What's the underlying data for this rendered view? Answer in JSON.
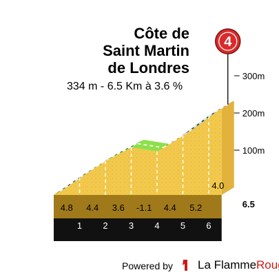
{
  "title_lines": [
    "Côte de",
    "Saint Martin",
    "de Londres"
  ],
  "subtitle": "334 m - 6.5 Km à 3.6 %",
  "climb_number": "4",
  "footer": {
    "powered_by": "Powered by",
    "brand_a": "La Flamme",
    "brand_b": "Rouge"
  },
  "colors": {
    "fill": "#f2c94c",
    "steep": "#1e5b7a",
    "moderate": "#29a02f",
    "gentle": "#8ee04a",
    "marker": "#d92b2b",
    "base": "#111111"
  },
  "chart_data": {
    "type": "area",
    "title": "Côte de Saint Martin de Londres",
    "xlabel": "",
    "ylabel": "",
    "xlim": [
      0,
      6.5
    ],
    "ylim": [
      0,
      334
    ],
    "x_ticks": [
      "1",
      "2",
      "3",
      "4",
      "5",
      "6"
    ],
    "end_label": "6.5",
    "y_ticks": [
      {
        "value": 100,
        "label": "100m"
      },
      {
        "value": 200,
        "label": "200m"
      },
      {
        "value": 300,
        "label": "300m"
      }
    ],
    "segments": [
      {
        "km": 1,
        "gradient": "4.8"
      },
      {
        "km": 2,
        "gradient": "4.4"
      },
      {
        "km": 3,
        "gradient": "3.6"
      },
      {
        "km": 4,
        "gradient": "-1.1"
      },
      {
        "km": 5,
        "gradient": "4.4"
      },
      {
        "km": 6,
        "gradient": "5.2"
      },
      {
        "km": 6.5,
        "gradient": "4.0"
      }
    ],
    "profile": [
      {
        "x": 0,
        "y": 0
      },
      {
        "x": 1,
        "y": 48
      },
      {
        "x": 2,
        "y": 92
      },
      {
        "x": 3,
        "y": 128
      },
      {
        "x": 4,
        "y": 117
      },
      {
        "x": 5,
        "y": 161
      },
      {
        "x": 6,
        "y": 213
      },
      {
        "x": 6.5,
        "y": 233
      }
    ]
  }
}
